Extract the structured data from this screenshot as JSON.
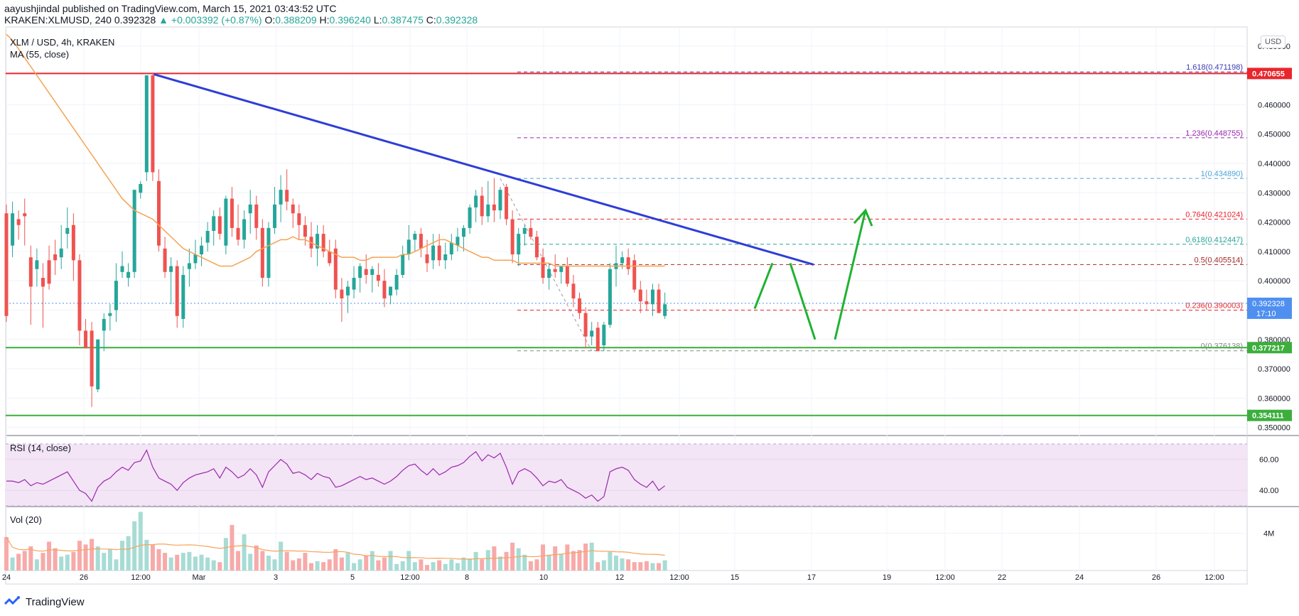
{
  "header": {
    "publisher_line": "aayushjindal published on TradingView.com, March 15, 2021 03:43:52 UTC",
    "symbol_line": "KRAKEN:XLMUSD, 240",
    "last": "0.392328",
    "change": "+0.003392 (+0.87%)",
    "o_label": "O:",
    "o_value": "0.388209",
    "h_label": "H:",
    "h_value": "0.396240",
    "l_label": "L:",
    "l_value": "0.387475",
    "c_label": "C:",
    "c_value": "0.392328"
  },
  "panes": {
    "main_title": "XLM / USD, 4h, KRAKEN",
    "ma_label": "MA (55, close)",
    "rsi_label": "RSI (14, close)",
    "vol_label": "Vol (20)",
    "currency_badge": "USD"
  },
  "footer": {
    "brand": "TradingView"
  },
  "colors": {
    "up": "#26a69a",
    "down": "#ef5350",
    "ma": "#f5a350",
    "trendline": "#2e3ed6",
    "resistance": "#e8262c",
    "support": "#3cae3c",
    "arrow": "#1fb232",
    "rsi": "#9c27b0",
    "rsi_band": "#f3e5f5",
    "last_price_bg": "#4f8ff0"
  },
  "chart_data": {
    "type": "candlestick",
    "title": "XLM / USD, 4h, KRAKEN",
    "price_axis_labels": [
      "0.480000",
      "0.470000",
      "0.460000",
      "0.450000",
      "0.440000",
      "0.430000",
      "0.420000",
      "0.410000",
      "0.400000",
      "0.390000",
      "0.380000",
      "0.370000",
      "0.360000",
      "0.350000"
    ],
    "price_range": [
      0.3475,
      0.4865
    ],
    "time_axis_labels": [
      "24",
      "26",
      "12:00",
      "Mar",
      "3",
      "5",
      "12:00",
      "8",
      "10",
      "12",
      "12:00",
      "15",
      "17",
      "19",
      "12:00",
      "22",
      "24",
      "26",
      "12:00"
    ],
    "ohlc": [
      [
        0.423,
        0.426,
        0.386,
        0.388
      ],
      [
        0.412,
        0.427,
        0.408,
        0.423
      ],
      [
        0.421,
        0.424,
        0.414,
        0.419
      ],
      [
        0.423,
        0.428,
        0.412,
        0.422
      ],
      [
        0.408,
        0.412,
        0.385,
        0.398
      ],
      [
        0.404,
        0.411,
        0.398,
        0.407
      ],
      [
        0.401,
        0.406,
        0.384,
        0.398
      ],
      [
        0.407,
        0.412,
        0.397,
        0.399
      ],
      [
        0.409,
        0.414,
        0.402,
        0.407
      ],
      [
        0.408,
        0.419,
        0.404,
        0.411
      ],
      [
        0.416,
        0.425,
        0.411,
        0.418
      ],
      [
        0.419,
        0.423,
        0.4,
        0.407
      ],
      [
        0.407,
        0.409,
        0.378,
        0.383
      ],
      [
        0.383,
        0.387,
        0.377,
        0.377
      ],
      [
        0.383,
        0.386,
        0.357,
        0.364
      ],
      [
        0.363,
        0.38,
        0.362,
        0.38
      ],
      [
        0.383,
        0.389,
        0.376,
        0.387
      ],
      [
        0.388,
        0.392,
        0.383,
        0.389
      ],
      [
        0.39,
        0.406,
        0.386,
        0.4
      ],
      [
        0.403,
        0.41,
        0.401,
        0.405
      ],
      [
        0.401,
        0.406,
        0.398,
        0.403
      ],
      [
        0.403,
        0.431,
        0.401,
        0.431
      ],
      [
        0.43,
        0.434,
        0.428,
        0.433
      ],
      [
        0.437,
        0.47,
        0.434,
        0.47
      ],
      [
        0.47,
        0.471,
        0.434,
        0.437
      ],
      [
        0.434,
        0.438,
        0.41,
        0.412
      ],
      [
        0.411,
        0.415,
        0.401,
        0.403
      ],
      [
        0.403,
        0.408,
        0.392,
        0.405
      ],
      [
        0.405,
        0.407,
        0.384,
        0.388
      ],
      [
        0.387,
        0.405,
        0.384,
        0.402
      ],
      [
        0.404,
        0.411,
        0.398,
        0.406
      ],
      [
        0.406,
        0.414,
        0.404,
        0.409
      ],
      [
        0.409,
        0.415,
        0.405,
        0.412
      ],
      [
        0.413,
        0.42,
        0.41,
        0.417
      ],
      [
        0.417,
        0.424,
        0.412,
        0.422
      ],
      [
        0.422,
        0.425,
        0.414,
        0.416
      ],
      [
        0.412,
        0.429,
        0.409,
        0.428
      ],
      [
        0.428,
        0.432,
        0.415,
        0.418
      ],
      [
        0.418,
        0.426,
        0.412,
        0.414
      ],
      [
        0.414,
        0.424,
        0.411,
        0.421
      ],
      [
        0.423,
        0.431,
        0.416,
        0.426
      ],
      [
        0.426,
        0.429,
        0.414,
        0.418
      ],
      [
        0.418,
        0.421,
        0.398,
        0.401
      ],
      [
        0.401,
        0.42,
        0.398,
        0.418
      ],
      [
        0.418,
        0.432,
        0.416,
        0.426
      ],
      [
        0.426,
        0.436,
        0.42,
        0.431
      ],
      [
        0.431,
        0.438,
        0.424,
        0.427
      ],
      [
        0.426,
        0.428,
        0.418,
        0.423
      ],
      [
        0.423,
        0.426,
        0.414,
        0.419
      ],
      [
        0.419,
        0.422,
        0.412,
        0.415
      ],
      [
        0.415,
        0.42,
        0.408,
        0.411
      ],
      [
        0.411,
        0.419,
        0.405,
        0.416
      ],
      [
        0.416,
        0.419,
        0.408,
        0.41
      ],
      [
        0.41,
        0.414,
        0.405,
        0.406
      ],
      [
        0.411,
        0.414,
        0.394,
        0.397
      ],
      [
        0.397,
        0.401,
        0.386,
        0.394
      ],
      [
        0.395,
        0.4,
        0.389,
        0.398
      ],
      [
        0.397,
        0.405,
        0.394,
        0.401
      ],
      [
        0.401,
        0.406,
        0.396,
        0.405
      ],
      [
        0.404,
        0.409,
        0.399,
        0.402
      ],
      [
        0.402,
        0.405,
        0.396,
        0.404
      ],
      [
        0.402,
        0.406,
        0.398,
        0.4
      ],
      [
        0.4,
        0.404,
        0.391,
        0.394
      ],
      [
        0.395,
        0.398,
        0.392,
        0.398
      ],
      [
        0.397,
        0.404,
        0.395,
        0.402
      ],
      [
        0.402,
        0.412,
        0.401,
        0.409
      ],
      [
        0.409,
        0.419,
        0.407,
        0.414
      ],
      [
        0.414,
        0.417,
        0.41,
        0.416
      ],
      [
        0.416,
        0.418,
        0.408,
        0.411
      ],
      [
        0.409,
        0.414,
        0.403,
        0.406
      ],
      [
        0.407,
        0.416,
        0.404,
        0.412
      ],
      [
        0.412,
        0.416,
        0.405,
        0.407
      ],
      [
        0.407,
        0.413,
        0.404,
        0.409
      ],
      [
        0.409,
        0.416,
        0.407,
        0.413
      ],
      [
        0.412,
        0.418,
        0.41,
        0.415
      ],
      [
        0.415,
        0.419,
        0.41,
        0.418
      ],
      [
        0.418,
        0.426,
        0.416,
        0.425
      ],
      [
        0.425,
        0.431,
        0.42,
        0.429
      ],
      [
        0.429,
        0.432,
        0.419,
        0.422
      ],
      [
        0.422,
        0.434,
        0.42,
        0.426
      ],
      [
        0.426,
        0.435,
        0.42,
        0.424
      ],
      [
        0.424,
        0.432,
        0.421,
        0.431
      ],
      [
        0.432,
        0.433,
        0.419,
        0.421
      ],
      [
        0.421,
        0.424,
        0.406,
        0.409
      ],
      [
        0.409,
        0.418,
        0.405,
        0.416
      ],
      [
        0.416,
        0.419,
        0.412,
        0.418
      ],
      [
        0.418,
        0.421,
        0.414,
        0.415
      ],
      [
        0.415,
        0.417,
        0.407,
        0.408
      ],
      [
        0.408,
        0.411,
        0.399,
        0.401
      ],
      [
        0.401,
        0.406,
        0.397,
        0.404
      ],
      [
        0.404,
        0.409,
        0.401,
        0.403
      ],
      [
        0.403,
        0.405,
        0.399,
        0.405
      ],
      [
        0.405,
        0.408,
        0.398,
        0.399
      ],
      [
        0.399,
        0.402,
        0.391,
        0.394
      ],
      [
        0.394,
        0.396,
        0.387,
        0.389
      ],
      [
        0.389,
        0.391,
        0.377,
        0.381
      ],
      [
        0.381,
        0.386,
        0.378,
        0.383
      ],
      [
        0.384,
        0.386,
        0.377,
        0.376
      ],
      [
        0.378,
        0.386,
        0.376,
        0.385
      ],
      [
        0.385,
        0.406,
        0.384,
        0.404
      ],
      [
        0.404,
        0.412,
        0.398,
        0.406
      ],
      [
        0.406,
        0.41,
        0.404,
        0.408
      ],
      [
        0.408,
        0.411,
        0.402,
        0.404
      ],
      [
        0.407,
        0.409,
        0.396,
        0.397
      ],
      [
        0.397,
        0.4,
        0.389,
        0.393
      ],
      [
        0.393,
        0.397,
        0.39,
        0.392
      ],
      [
        0.392,
        0.399,
        0.388,
        0.397
      ],
      [
        0.397,
        0.399,
        0.389,
        0.389
      ],
      [
        0.388,
        0.396,
        0.387,
        0.392
      ]
    ],
    "ma55": [
      0.484,
      0.482,
      0.479,
      0.476,
      0.473,
      0.47,
      0.467,
      0.464,
      0.461,
      0.458,
      0.455,
      0.452,
      0.449,
      0.446,
      0.443,
      0.44,
      0.437,
      0.434,
      0.431,
      0.428,
      0.426,
      0.424,
      0.423,
      0.422,
      0.421,
      0.419,
      0.417,
      0.415,
      0.413,
      0.411,
      0.41,
      0.409,
      0.408,
      0.407,
      0.406,
      0.405,
      0.405,
      0.405,
      0.406,
      0.407,
      0.408,
      0.41,
      0.411,
      0.412,
      0.413,
      0.414,
      0.414,
      0.415,
      0.414,
      0.414,
      0.413,
      0.412,
      0.411,
      0.41,
      0.409,
      0.408,
      0.408,
      0.408,
      0.407,
      0.407,
      0.408,
      0.408,
      0.408,
      0.408,
      0.408,
      0.409,
      0.409,
      0.41,
      0.411,
      0.412,
      0.413,
      0.414,
      0.414,
      0.413,
      0.412,
      0.411,
      0.41,
      0.409,
      0.408,
      0.408,
      0.407,
      0.407,
      0.407,
      0.407,
      0.406,
      0.406,
      0.406,
      0.406,
      0.406,
      0.406,
      0.405,
      0.405,
      0.405,
      0.405,
      0.405,
      0.405,
      0.405,
      0.405,
      0.405,
      0.405,
      0.405,
      0.405,
      0.405,
      0.405,
      0.405,
      0.405,
      0.405,
      0.405,
      0.405
    ],
    "rsi": [
      46,
      46,
      45,
      47,
      43,
      45,
      44,
      46,
      48,
      50,
      52,
      46,
      40,
      38,
      33,
      42,
      46,
      48,
      52,
      55,
      53,
      58,
      59,
      66,
      55,
      48,
      46,
      44,
      40,
      45,
      48,
      50,
      51,
      52,
      54,
      48,
      55,
      52,
      48,
      50,
      54,
      50,
      42,
      52,
      56,
      60,
      57,
      51,
      52,
      50,
      47,
      51,
      49,
      48,
      42,
      43,
      45,
      47,
      49,
      47,
      48,
      46,
      44,
      46,
      49,
      53,
      56,
      57,
      53,
      50,
      54,
      50,
      52,
      55,
      56,
      58,
      62,
      65,
      59,
      63,
      61,
      64,
      55,
      44,
      52,
      54,
      52,
      48,
      43,
      46,
      45,
      47,
      42,
      40,
      38,
      35,
      37,
      33,
      36,
      52,
      54,
      55,
      53,
      47,
      44,
      42,
      46,
      40,
      43
    ],
    "rsi_levels": [
      40,
      60
    ],
    "rsi_axis_labels": [
      "60.00",
      "40.00"
    ],
    "volume": [
      3.6,
      1.4,
      1.8,
      2.1,
      2.6,
      1.2,
      1.9,
      3.1,
      2.4,
      1.5,
      1.7,
      2.0,
      3.2,
      2.8,
      3.4,
      2.6,
      1.9,
      2.3,
      1.2,
      3.2,
      3.7,
      5.3,
      6.3,
      3.3,
      2.8,
      2.3,
      1.9,
      1.4,
      1.7,
      1.9,
      2.0,
      1.5,
      1.7,
      1.4,
      1.1,
      0.9,
      3.5,
      4.9,
      2.1,
      3.9,
      1.8,
      2.7,
      2.1,
      1.6,
      1.2,
      3.1,
      2.0,
      1.1,
      1.3,
      1.9,
      0.8,
      1.0,
      0.9,
      1.2,
      2.3,
      1.4,
      1.9,
      0.8,
      1.2,
      1.6,
      2.1,
      1.1,
      1.4,
      2.1,
      0.7,
      1.0,
      2.1,
      0.9,
      1.2,
      0.6,
      0.9,
      1.1,
      0.7,
      1.2,
      0.8,
      1.4,
      1.3,
      2.0,
      1.2,
      2.2,
      2.6,
      1.5,
      2.0,
      3.0,
      2.4,
      1.7,
      1.0,
      1.2,
      2.8,
      1.7,
      2.6,
      1.8,
      2.8,
      2.1,
      2.2,
      2.9,
      3.0,
      0.9,
      1.1,
      2.0,
      1.6,
      1.3,
      1.2,
      0.9,
      0.9,
      1.0,
      0.8,
      0.8,
      1.1
    ],
    "volume_axis_labels": [
      "4M"
    ],
    "price_levels": [
      {
        "label": "0.470655",
        "value": 0.470655,
        "kind": "resistance"
      },
      {
        "label": "0.377217",
        "value": 0.377217,
        "kind": "support"
      },
      {
        "label": "0.354111",
        "value": 0.354111,
        "kind": "support"
      }
    ],
    "last_price": {
      "label": "0.392328",
      "value": 0.392328,
      "countdown": "17:10"
    },
    "fibonacci": [
      {
        "label": "1.618(0.471198)",
        "value": 0.471198,
        "color": "#3b3bb3"
      },
      {
        "label": "1.236(0.448755)",
        "value": 0.448755,
        "color": "#9c27b0"
      },
      {
        "label": "1(0.434890)",
        "value": 0.43489,
        "color": "#4fa3d8"
      },
      {
        "label": "0.764(0.421024)",
        "value": 0.421024,
        "color": "#e8262c"
      },
      {
        "label": "0.618(0.412447)",
        "value": 0.412447,
        "color": "#26a69a"
      },
      {
        "label": "0.5(0.405514)",
        "value": 0.405514,
        "color": "#a52a2a"
      },
      {
        "label": "0.236(0.390003)",
        "value": 0.390003,
        "color": "#e8262c"
      },
      {
        "label": "0(0.376138)",
        "value": 0.376138,
        "color": "#888888"
      }
    ],
    "trendline": {
      "from": [
        23,
        0.4704
      ],
      "to": [
        114,
        0.4055
      ]
    },
    "projection_arrows": [
      [
        0.3905,
        0.406
      ],
      [
        0.406,
        0.38
      ],
      [
        0.38,
        0.424
      ]
    ],
    "grid": true
  }
}
